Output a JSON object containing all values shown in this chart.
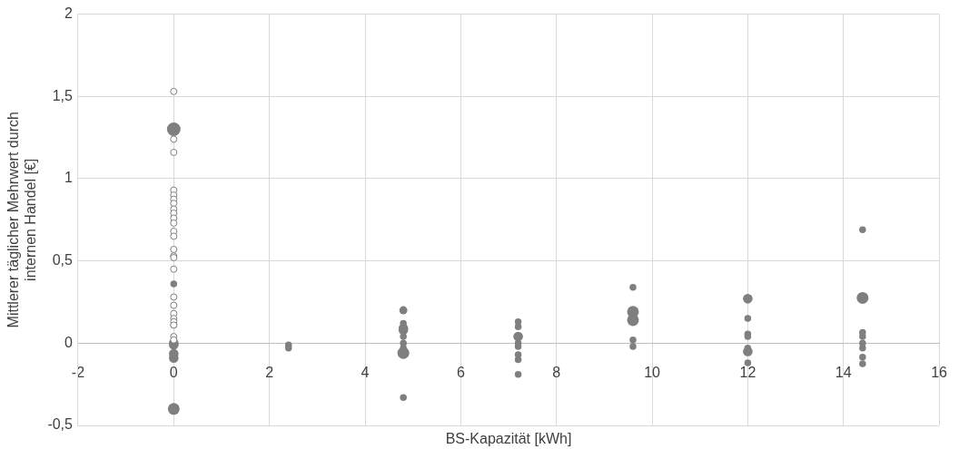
{
  "chart_data": {
    "type": "bubble",
    "xlabel": "BS-Kapazität [kWh]",
    "ylabel": "Mittlerer täglicher Mehrwert durch\ninternen Handel [€]",
    "xlim": [
      -2,
      16
    ],
    "xticks": [
      -2,
      0,
      2,
      4,
      6,
      8,
      10,
      12,
      14,
      16
    ],
    "ylim": [
      -0.5,
      2
    ],
    "yticks": [
      {
        "value": -0.5,
        "label": "-0,5"
      },
      0,
      {
        "value": 0.5,
        "label": "0,5"
      },
      1,
      {
        "value": 1.5,
        "label": "1,5"
      },
      2
    ],
    "grid": true,
    "marker": "circle",
    "series": [
      {
        "type": "scatter",
        "color": "#ffffff",
        "x": [
          0,
          0,
          0,
          0,
          0,
          0,
          0,
          0,
          0,
          0,
          0,
          0,
          0,
          0,
          0,
          0,
          0,
          0,
          0,
          0,
          0,
          0,
          0,
          0,
          0
        ],
        "values": [
          1.53,
          1.24,
          1.16,
          0.93,
          0.9,
          0.875,
          0.85,
          0.815,
          0.79,
          0.76,
          0.73,
          0.68,
          0.65,
          0.57,
          0.53,
          0.52,
          0.45,
          0.28,
          0.23,
          0.18,
          0.15,
          0.13,
          0.11,
          0.04,
          0.02
        ]
      },
      {
        "color": "#7f7f7f",
        "x": [
          0,
          0,
          0,
          0,
          0,
          0,
          0,
          0,
          2.4,
          2.4,
          4.8,
          4.8,
          4.8,
          4.8,
          4.8,
          4.8,
          4.8,
          4.8,
          4.8,
          7.2,
          7.2,
          7.2,
          7.2,
          7.2,
          7.2,
          7.2,
          7.2,
          9.6,
          9.6,
          9.6,
          9.6,
          9.6,
          12,
          12,
          12,
          12,
          12,
          12,
          12,
          14.4,
          14.4,
          14.4,
          14.4,
          14.4,
          14.4,
          14.4,
          14.4
        ],
        "values": [
          1.3,
          0.36,
          0.11,
          0,
          -0.01,
          -0.065,
          -0.09,
          -0.4,
          -0.01,
          -0.03,
          0.2,
          0.12,
          0.09,
          0.08,
          0.04,
          0,
          -0.03,
          -0.06,
          -0.33,
          0.13,
          0.1,
          0.04,
          0,
          -0.02,
          -0.07,
          -0.1,
          -0.19,
          0.34,
          0.19,
          0.14,
          0.02,
          -0.02,
          0.27,
          0.15,
          0.055,
          0.04,
          -0.03,
          -0.05,
          -0.12,
          0.69,
          0.275,
          0.065,
          0.04,
          0,
          -0.03,
          -0.085,
          -0.125
        ],
        "sizes": [
          1,
          0.25,
          0.25,
          0.5,
          0.5,
          0.5,
          0.5,
          0.75,
          0.25,
          0.25,
          0.35,
          0.25,
          0.5,
          0.5,
          0.25,
          0.25,
          0.25,
          0.75,
          0.25,
          0.25,
          0.25,
          0.5,
          0.25,
          0.25,
          0.25,
          0.25,
          0.25,
          0.25,
          0.75,
          0.75,
          0.25,
          0.25,
          0.5,
          0.25,
          0.25,
          0.25,
          0.25,
          0.5,
          0.25,
          0.25,
          0.75,
          0.25,
          0.25,
          0.25,
          0.25,
          0.25,
          0.25
        ]
      }
    ]
  }
}
